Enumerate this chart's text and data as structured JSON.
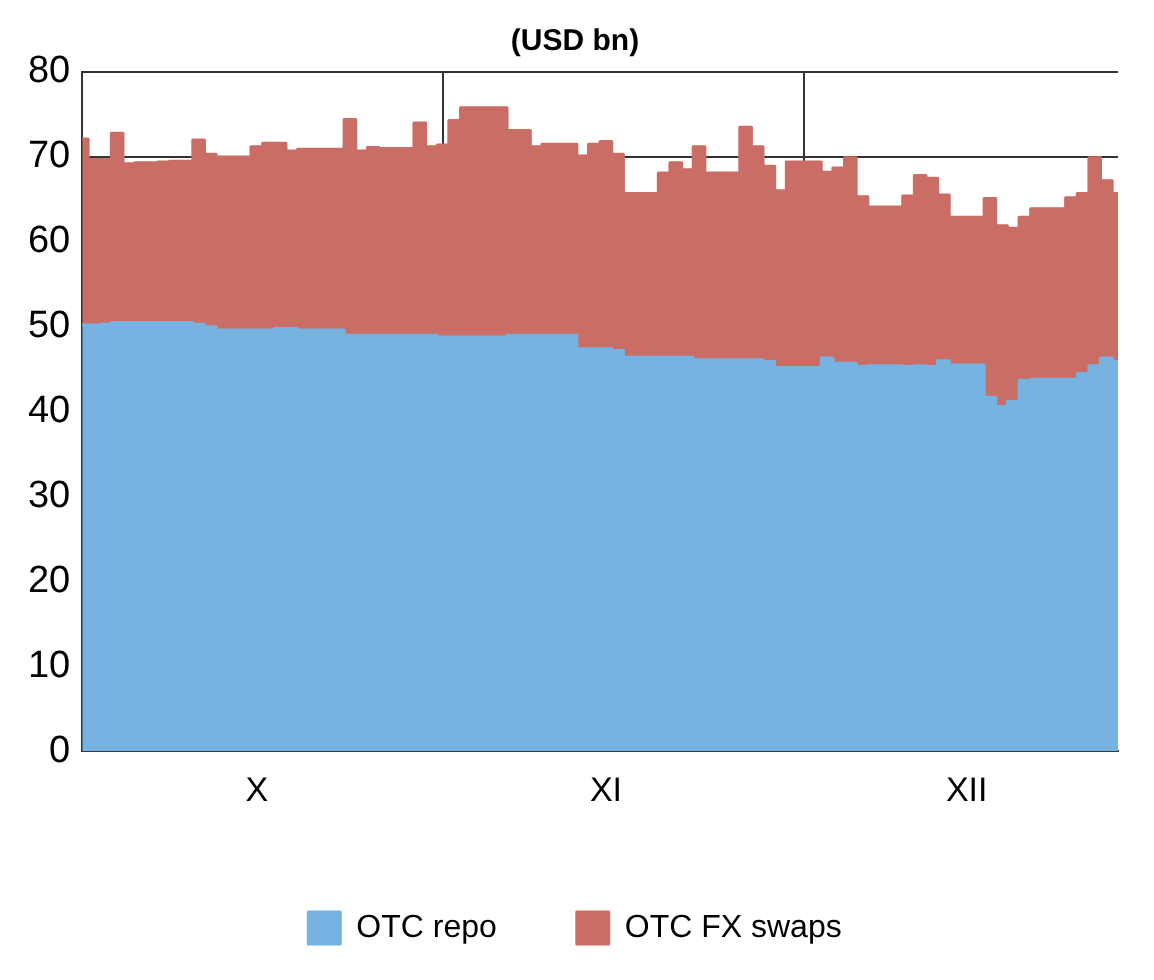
{
  "chart_data": {
    "type": "area",
    "title": "(USD bn)",
    "stacked": true,
    "grid": true,
    "legend": "bottom",
    "categories": [
      null,
      null,
      null,
      null,
      null,
      null,
      null,
      null,
      null,
      null,
      null,
      null,
      null,
      null,
      null,
      "X",
      null,
      null,
      null,
      null,
      null,
      null,
      null,
      null,
      null,
      null,
      null,
      null,
      null,
      null,
      null,
      null,
      null,
      null,
      null,
      null,
      null,
      null,
      null,
      null,
      null,
      null,
      null,
      null,
      null,
      "XI",
      null,
      null,
      null,
      null,
      null,
      null,
      null,
      null,
      null,
      null,
      null,
      null,
      null,
      null,
      null,
      null,
      null,
      null,
      null,
      null,
      null,
      null,
      null,
      null,
      null,
      null,
      null,
      null,
      null,
      null,
      "XII",
      null,
      null,
      null,
      null,
      null,
      null,
      null,
      null,
      null,
      null,
      null,
      null,
      null
    ],
    "ylim": [
      0,
      80
    ],
    "yticks": [
      0,
      10,
      20,
      30,
      40,
      50,
      60,
      70,
      80
    ],
    "series": [
      {
        "name": "OTC repo",
        "color": "#77b3e1",
        "values": [
          50.2,
          50.2,
          50.3,
          50.5,
          50.5,
          50.5,
          50.5,
          50.5,
          50.5,
          50.5,
          50.3,
          50.0,
          49.6,
          49.6,
          49.6,
          49.6,
          49.6,
          49.8,
          49.8,
          49.6,
          49.6,
          49.6,
          49.6,
          49.0,
          49.0,
          49.0,
          49.0,
          49.0,
          49.0,
          49.0,
          49.0,
          48.8,
          48.8,
          48.8,
          48.8,
          48.8,
          48.8,
          49.0,
          49.0,
          49.0,
          49.0,
          49.0,
          49.0,
          47.4,
          47.4,
          47.4,
          47.2,
          46.4,
          46.4,
          46.4,
          46.4,
          46.4,
          46.4,
          46.1,
          46.1,
          46.1,
          46.1,
          46.1,
          46.1,
          45.9,
          45.2,
          45.2,
          45.2,
          45.2,
          46.3,
          45.7,
          45.7,
          45.3,
          45.4,
          45.4,
          45.4,
          45.3,
          45.4,
          45.3,
          46.0,
          45.5,
          45.5,
          45.5,
          41.7,
          40.6,
          41.2,
          43.7,
          43.8,
          43.8,
          43.8,
          43.8,
          44.5,
          45.4,
          46.3,
          45.9
        ]
      },
      {
        "name": "OTC FX swaps",
        "color": "#c96d65",
        "values": [
          21.9,
          19.5,
          19.4,
          22.3,
          18.7,
          18.8,
          18.8,
          18.9,
          19.0,
          19.0,
          21.7,
          20.3,
          20.4,
          20.4,
          20.4,
          21.6,
          22.0,
          21.8,
          20.9,
          21.3,
          21.3,
          21.3,
          21.3,
          25.4,
          21.7,
          22.1,
          22.0,
          22.0,
          22.0,
          25.0,
          22.2,
          22.6,
          25.5,
          27.0,
          27.0,
          27.0,
          27.0,
          24.1,
          24.1,
          22.2,
          22.5,
          22.5,
          22.5,
          22.7,
          24.1,
          24.4,
          23.1,
          19.3,
          19.3,
          19.3,
          21.7,
          22.9,
          22.1,
          25.1,
          22.0,
          22.0,
          22.0,
          27.4,
          25.1,
          23.0,
          20.8,
          24.2,
          24.2,
          24.2,
          21.9,
          23.0,
          24.2,
          20.0,
          18.7,
          18.7,
          18.7,
          20.1,
          22.4,
          22.2,
          19.5,
          17.4,
          17.4,
          17.4,
          23.4,
          21.3,
          20.4,
          19.2,
          20.1,
          20.1,
          20.1,
          21.4,
          21.2,
          24.5,
          20.9,
          19.8
        ]
      }
    ]
  }
}
